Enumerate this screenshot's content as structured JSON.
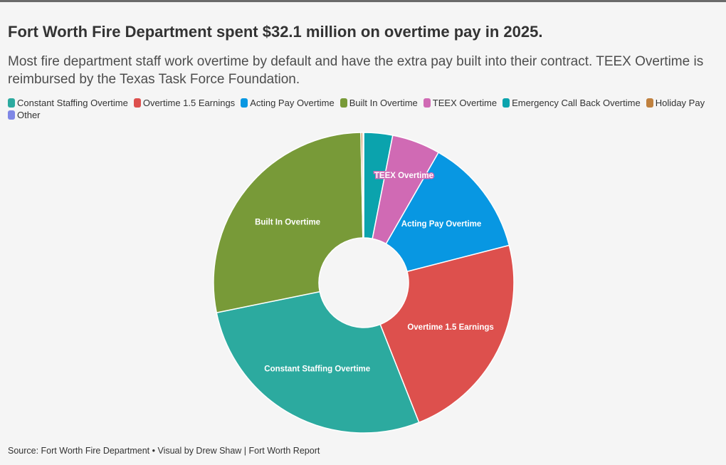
{
  "title": "Fort Worth Fire Department spent $32.1 million on overtime pay in 2025.",
  "subtitle": "Most fire department staff work overtime by default and have the extra pay built into their contract. TEEX Overtime is reimbursed by the Texas Task Force Foundation.",
  "footer": "Source: Fort Worth Fire Department • Visual by Drew Shaw | Fort Worth Report",
  "colors": {
    "Constant Staffing Overtime": "#2caa9f",
    "Overtime 1.5 Earnings": "#dd504d",
    "Acting Pay Overtime": "#0897e2",
    "Built In Overtime": "#789a38",
    "TEEX Overtime": "#d06ab4",
    "Emergency Call Back Overtime": "#0ba3ad",
    "Holiday Pay": "#c0813f",
    "Other": "#7f87e6"
  },
  "chart_data": {
    "type": "pie",
    "subtype": "donut",
    "title": "Fort Worth Fire Department spent $32.1 million on overtime pay in 2025.",
    "unit": "percent of total overtime pay (estimated)",
    "legend": [
      "Constant Staffing Overtime",
      "Overtime 1.5 Earnings",
      "Acting Pay Overtime",
      "Built In Overtime",
      "TEEX Overtime",
      "Emergency Call Back Overtime",
      "Holiday Pay",
      "Other"
    ],
    "categories": [
      "Emergency Call Back Overtime",
      "TEEX Overtime",
      "Acting Pay Overtime",
      "Overtime 1.5 Earnings",
      "Constant Staffing Overtime",
      "Built In Overtime",
      "Holiday Pay",
      "Other"
    ],
    "values": [
      3.1,
      5.2,
      12.7,
      23.0,
      27.8,
      27.9,
      0.2,
      0.1
    ],
    "slice_labels": [
      "",
      "TEEX Overtime",
      "Acting Pay Overtime",
      "Overtime 1.5 Earnings",
      "Constant Staffing Overtime",
      "Built In Overtime",
      "",
      ""
    ]
  }
}
